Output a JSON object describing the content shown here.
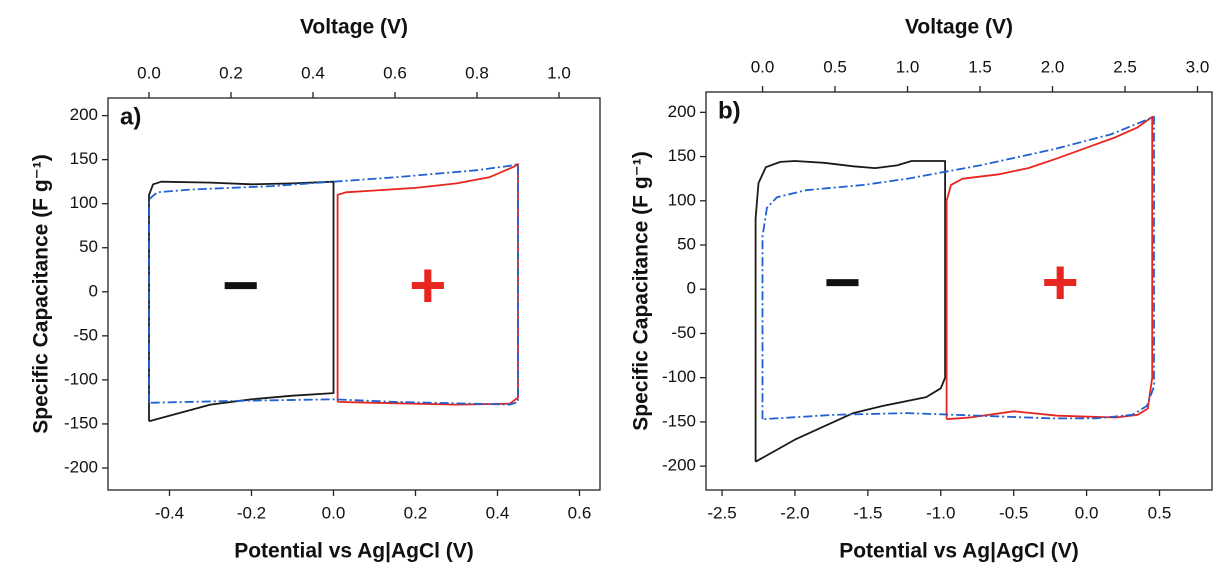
{
  "chart_data": [
    {
      "type": "line",
      "panel_label": "a)",
      "xlabel": "Potential vs Ag|AgCl (V)",
      "x2label": "Voltage (V)",
      "ylabel": "Specific Capacitance (F g⁻¹)",
      "annotations": [
        "−",
        "+"
      ],
      "xlim": [
        -0.55,
        0.65
      ],
      "x2lim": [
        -0.1,
        1.1
      ],
      "ylim": [
        -225,
        220
      ],
      "xticks": [
        -0.4,
        -0.2,
        {
          "value": 0,
          "label": "0.0"
        },
        0.2,
        0.4,
        0.6
      ],
      "x2ticks": [
        {
          "value": 0,
          "label": "0.0"
        },
        0.2,
        0.4,
        0.6,
        0.8,
        {
          "value": 1,
          "label": "1.0"
        }
      ],
      "yticks": [
        200,
        150,
        100,
        50,
        0,
        -50,
        -100,
        -150,
        -200
      ],
      "series": [
        {
          "color": "#1a1a1a",
          "style": "solid",
          "x": [
            -0.45,
            -0.45,
            -0.44,
            -0.42,
            -0.3,
            -0.2,
            -0.1,
            0.0,
            0.0,
            -0.1,
            -0.2,
            -0.3,
            -0.45
          ],
          "values": [
            -147,
            110,
            122,
            125,
            124,
            122,
            123,
            125,
            -115,
            -118,
            -122,
            -128,
            -147
          ]
        },
        {
          "color": "#e8251f",
          "style": "solid",
          "x": [
            0.01,
            0.01,
            0.03,
            0.1,
            0.2,
            0.3,
            0.38,
            0.44,
            0.45,
            0.45,
            0.43,
            0.3,
            0.2,
            0.1,
            0.01
          ],
          "values": [
            -125,
            110,
            113,
            115,
            118,
            123,
            130,
            142,
            145,
            -120,
            -127,
            -128,
            -127,
            -126,
            -125
          ]
        },
        {
          "color": "#2060d0",
          "style": "dashdot",
          "axis": "x2",
          "x": [
            0.0,
            0.0,
            0.02,
            0.1,
            0.3,
            0.6,
            0.8,
            0.88,
            0.9,
            0.9,
            0.88,
            0.6,
            0.45,
            0.2,
            0.0
          ],
          "values": [
            -126,
            105,
            113,
            116,
            120,
            130,
            138,
            143,
            145,
            -125,
            -128,
            -125,
            -122,
            -124,
            -126
          ]
        }
      ]
    },
    {
      "type": "line",
      "panel_label": "b)",
      "xlabel": "Potential vs Ag|AgCl (V)",
      "x2label": "Voltage (V)",
      "ylabel": "Specific Capacitance (F g⁻¹)",
      "annotations": [
        "−",
        "+"
      ],
      "xlim": [
        -2.61,
        0.86
      ],
      "x2lim": [
        -0.39,
        3.1
      ],
      "ylim": [
        -227,
        223
      ],
      "xticks": [
        -2.5,
        {
          "value": -2,
          "label": "-2.0"
        },
        -1.5,
        {
          "value": -1,
          "label": "-1.0"
        },
        -0.5,
        {
          "value": 0,
          "label": "0.0"
        },
        0.5
      ],
      "x2ticks": [
        {
          "value": 0,
          "label": "0.0"
        },
        0.5,
        {
          "value": 1,
          "label": "1.0"
        },
        1.5,
        {
          "value": 2,
          "label": "2.0"
        },
        2.5,
        {
          "value": 3,
          "label": "3.0"
        }
      ],
      "yticks": [
        200,
        150,
        100,
        50,
        0,
        -50,
        -100,
        -150,
        -200
      ],
      "series": [
        {
          "color": "#1a1a1a",
          "style": "solid",
          "x": [
            -2.27,
            -2.27,
            -2.25,
            -2.2,
            -2.1,
            -2.0,
            -1.8,
            -1.6,
            -1.45,
            -1.3,
            -1.2,
            -0.97,
            -0.97,
            -1.0,
            -1.1,
            -1.4,
            -1.6,
            -1.8,
            -2.0,
            -2.27
          ],
          "values": [
            -195,
            80,
            120,
            138,
            144,
            145,
            143,
            139,
            137,
            140,
            145,
            145,
            -100,
            -112,
            -122,
            -132,
            -140,
            -155,
            -170,
            -195
          ]
        },
        {
          "color": "#e8251f",
          "style": "solid",
          "x": [
            -0.96,
            -0.96,
            -0.93,
            -0.85,
            -0.6,
            -0.4,
            -0.2,
            0.0,
            0.2,
            0.35,
            0.45,
            0.45,
            0.42,
            0.35,
            0.2,
            -0.2,
            -0.5,
            -0.8,
            -0.96
          ],
          "values": [
            -147,
            100,
            118,
            125,
            130,
            137,
            148,
            160,
            172,
            183,
            195,
            -100,
            -135,
            -142,
            -145,
            -143,
            -138,
            -145,
            -147
          ]
        },
        {
          "color": "#2060d0",
          "style": "dashdot",
          "axis": "x2",
          "x": [
            0.0,
            0.0,
            0.03,
            0.1,
            0.3,
            0.7,
            1.0,
            1.5,
            2.0,
            2.4,
            2.7,
            2.7,
            2.65,
            2.55,
            2.3,
            2.0,
            1.0,
            0.5,
            0.0
          ],
          "values": [
            -147,
            60,
            92,
            104,
            112,
            118,
            125,
            140,
            158,
            175,
            195,
            -110,
            -132,
            -142,
            -146,
            -146,
            -140,
            -142,
            -147
          ]
        }
      ]
    }
  ]
}
